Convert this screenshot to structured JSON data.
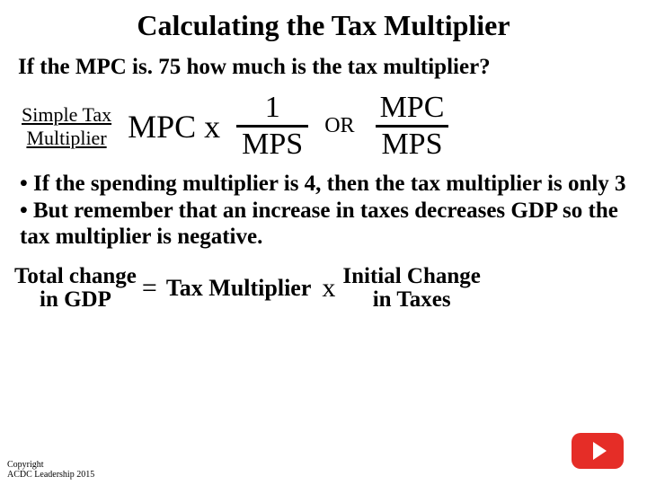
{
  "title": "Calculating the Tax Multiplier",
  "question": "If the MPC is. 75 how much is the tax multiplier?",
  "formula": {
    "label_line1": "Simple Tax",
    "label_line2": "Multiplier",
    "mpcx": "MPC x",
    "frac1_num": "1",
    "frac1_den": "MPS",
    "or": "OR",
    "frac2_num": "MPC",
    "frac2_den": "MPS"
  },
  "bullets": {
    "b1": "• If  the spending multiplier is 4, then the tax multiplier is only 3",
    "b2": "• But remember that an increase in taxes decreases GDP so the tax multiplier is negative."
  },
  "equation": {
    "lhs_line1": "Total change",
    "lhs_line2": "in GDP",
    "eq": "=",
    "mid": "Tax Multiplier",
    "x": "x",
    "rhs_line1": "Initial Change",
    "rhs_line2": "in Taxes"
  },
  "copyright": {
    "line1": "Copyright",
    "line2": "ACDC Leadership 2015"
  },
  "colors": {
    "background": "#ffffff",
    "text": "#000000",
    "youtube": "#e52d27"
  }
}
